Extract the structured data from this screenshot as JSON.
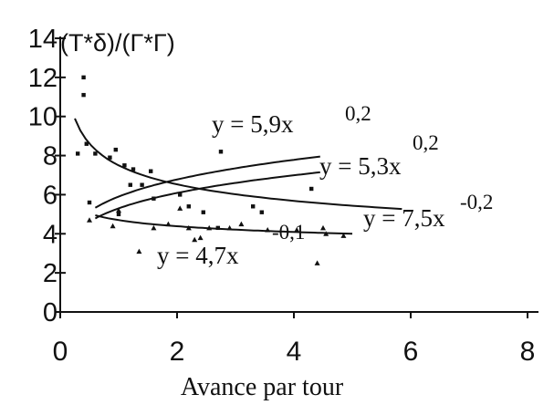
{
  "chart_data": {
    "type": "scatter",
    "title": "",
    "ylabel": "(T*δ)/(Γ*Γ)",
    "xlabel": "Avance par tour",
    "xlim": [
      0,
      8
    ],
    "ylim": [
      0,
      14
    ],
    "x_ticks": [
      "0",
      "2",
      "4",
      "6",
      "8"
    ],
    "y_ticks": [
      "0",
      "2",
      "4",
      "6",
      "8",
      "10",
      "12",
      "14"
    ],
    "grid": false,
    "colors": {
      "ink": "#111111",
      "background": "#ffffff"
    },
    "series": [
      {
        "marker": "square",
        "points": [
          [
            0.4,
            12.0
          ],
          [
            0.4,
            11.1
          ],
          [
            0.3,
            8.1
          ],
          [
            0.45,
            8.6
          ],
          [
            0.6,
            8.1
          ],
          [
            0.85,
            7.9
          ],
          [
            0.95,
            8.3
          ],
          [
            1.1,
            7.5
          ],
          [
            1.25,
            7.3
          ],
          [
            1.55,
            7.2
          ],
          [
            0.5,
            5.6
          ],
          [
            1.0,
            5.0
          ],
          [
            1.2,
            6.5
          ],
          [
            1.6,
            5.8
          ],
          [
            2.05,
            6.0
          ],
          [
            2.2,
            5.4
          ],
          [
            2.45,
            5.1
          ],
          [
            2.75,
            8.2
          ],
          [
            3.3,
            5.4
          ],
          [
            3.45,
            5.1
          ],
          [
            4.3,
            6.3
          ],
          [
            2.7,
            4.3
          ],
          [
            1.4,
            6.5
          ]
        ]
      },
      {
        "marker": "triangle",
        "points": [
          [
            0.5,
            4.7
          ],
          [
            0.9,
            4.4
          ],
          [
            1.0,
            5.2
          ],
          [
            1.35,
            3.1
          ],
          [
            1.6,
            4.3
          ],
          [
            1.85,
            4.5
          ],
          [
            2.05,
            5.3
          ],
          [
            2.2,
            4.3
          ],
          [
            2.4,
            3.8
          ],
          [
            2.55,
            4.3
          ],
          [
            2.9,
            4.3
          ],
          [
            3.1,
            4.5
          ],
          [
            3.55,
            4.2
          ],
          [
            4.05,
            4.2
          ],
          [
            4.4,
            2.5
          ],
          [
            4.85,
            3.9
          ],
          [
            4.5,
            4.3
          ],
          [
            4.55,
            4.0
          ],
          [
            2.3,
            3.7
          ]
        ]
      }
    ],
    "fit_lines": [
      {
        "label": "y = 5,9x",
        "exponent": "0,2",
        "a": 5.9,
        "b": 0.2,
        "x_range": [
          0.6,
          4.45
        ]
      },
      {
        "label": "y = 5,3x",
        "exponent": "0,2",
        "a": 5.3,
        "b": 0.2,
        "x_range": [
          0.6,
          4.45
        ]
      },
      {
        "label": "y = 7,5x",
        "exponent": "-0,2",
        "a": 7.5,
        "b": -0.2,
        "x_range": [
          0.25,
          5.85
        ]
      },
      {
        "label": "y = 4,7x",
        "exponent": "-0,1",
        "a": 4.7,
        "b": -0.1,
        "x_range": [
          0.6,
          5.0
        ]
      }
    ]
  }
}
